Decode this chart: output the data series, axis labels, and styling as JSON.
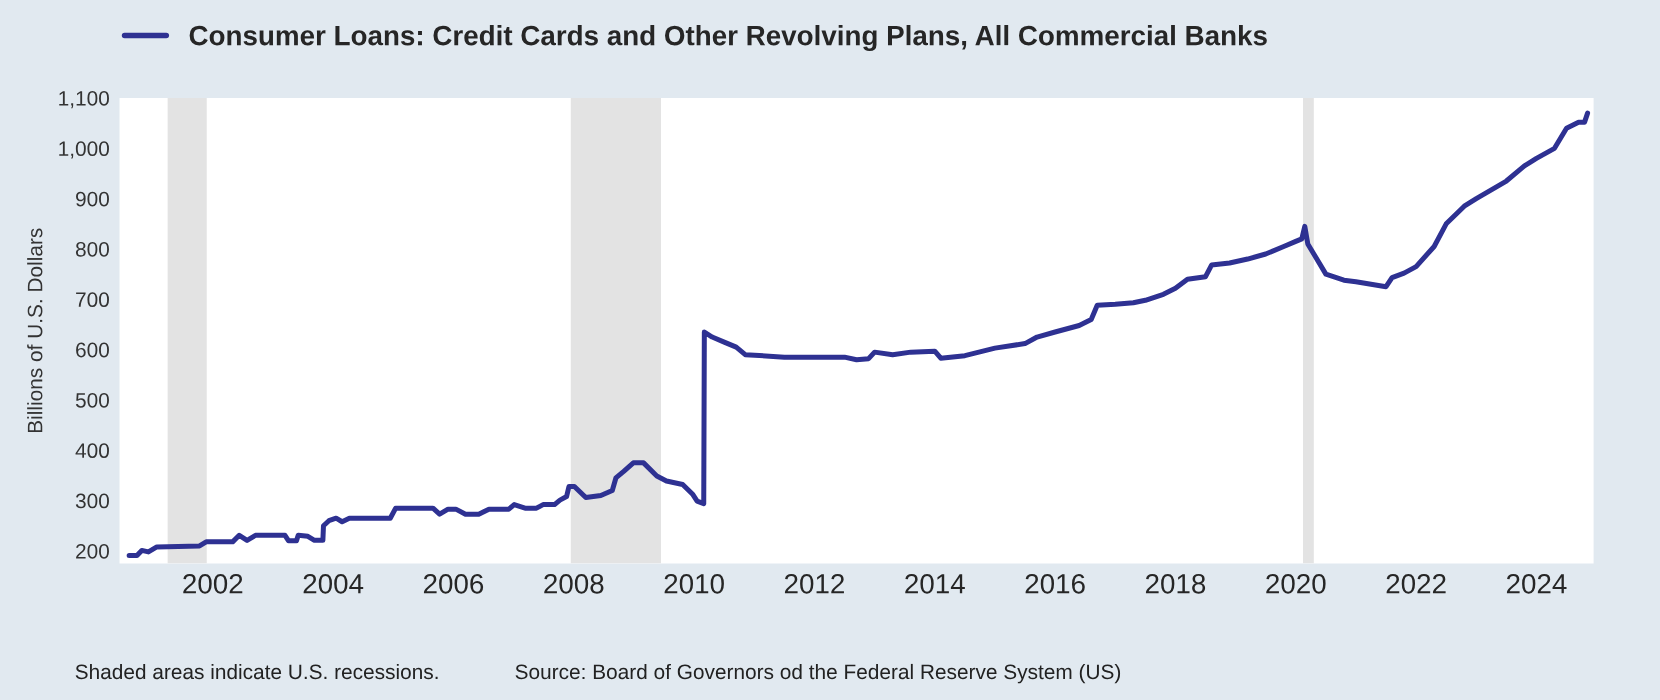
{
  "chart_data": {
    "type": "line",
    "ylabel": "Billions of U.S. Dollars",
    "legend": "top left",
    "grid": false,
    "marker": "none",
    "line_style": "solid",
    "xlim": [
      2000.45,
      2024.95
    ],
    "ylim": [
      175,
      1100
    ],
    "xticks": [
      2002,
      2004,
      2006,
      2008,
      2010,
      2012,
      2014,
      2016,
      2018,
      2020,
      2022,
      2024
    ],
    "yticks": [
      200,
      300,
      400,
      500,
      600,
      700,
      800,
      900,
      {
        "value": 1000,
        "label": "1,000"
      },
      {
        "value": 1100,
        "label": "1,100"
      }
    ],
    "bands": [
      {
        "axis": "x",
        "from": 2001.25,
        "to": 2001.9,
        "color": "#e3e3e3"
      },
      {
        "axis": "x",
        "from": 2007.95,
        "to": 2009.45,
        "color": "#e3e3e3"
      },
      {
        "axis": "x",
        "from": 2020.12,
        "to": 2020.3,
        "color": "#e3e3e3"
      }
    ],
    "annotations": [
      "Shaded areas indicate U.S. recessions.",
      "Source: Board of Governors od the Federal Reserve System (US)"
    ],
    "series": [
      {
        "name": "Consumer Loans: Credit Cards and Other Revolving Plans, All Commercial Banks",
        "color": "#2e3192",
        "x": [
          2000.61,
          2000.74,
          2000.82,
          2000.93,
          2001.07,
          2001.78,
          2001.89,
          2002.33,
          2002.44,
          2002.57,
          2002.71,
          2003.2,
          2003.26,
          2003.39,
          2003.42,
          2003.58,
          2003.69,
          2003.83,
          2003.84,
          2003.93,
          2004.05,
          2004.15,
          2004.27,
          2004.95,
          2005.04,
          2005.66,
          2005.77,
          2005.91,
          2006.04,
          2006.2,
          2006.42,
          2006.59,
          2006.92,
          2007.01,
          2007.19,
          2007.38,
          2007.49,
          2007.68,
          2007.77,
          2007.88,
          2007.92,
          2008.01,
          2008.2,
          2008.45,
          2008.64,
          2008.7,
          2008.83,
          2008.99,
          2009.16,
          2009.38,
          2009.54,
          2009.81,
          2009.98,
          2010.05,
          2010.16,
          2010.17,
          2010.3,
          2010.5,
          2010.7,
          2010.85,
          2011.5,
          2012.0,
          2012.5,
          2012.7,
          2012.9,
          2013.0,
          2013.3,
          2013.6,
          2014.0,
          2014.1,
          2014.5,
          2015.0,
          2015.5,
          2015.7,
          2016.0,
          2016.4,
          2016.6,
          2016.7,
          2017.0,
          2017.3,
          2017.5,
          2017.8,
          2018.0,
          2018.2,
          2018.5,
          2018.6,
          2018.9,
          2019.2,
          2019.5,
          2019.8,
          2020.0,
          2020.1,
          2020.15,
          2020.2,
          2020.3,
          2020.5,
          2020.8,
          2021.0,
          2021.5,
          2021.6,
          2021.8,
          2022.0,
          2022.3,
          2022.5,
          2022.8,
          2023.0,
          2023.5,
          2023.8,
          2024.0,
          2024.3,
          2024.5,
          2024.7,
          2024.8,
          2024.85
        ],
        "values": [
          191,
          191,
          201,
          198,
          208,
          210,
          218,
          218,
          231,
          221,
          231,
          231,
          220,
          220,
          231,
          229,
          221,
          221,
          250,
          260,
          265,
          258,
          265,
          265,
          285,
          285,
          273,
          283,
          283,
          273,
          273,
          283,
          283,
          292,
          285,
          285,
          292,
          292,
          301,
          308,
          328,
          328,
          306,
          310,
          320,
          345,
          358,
          375,
          375,
          349,
          339,
          332,
          312,
          299,
          294,
          635,
          625,
          615,
          605,
          590,
          585,
          585,
          585,
          580,
          582,
          595,
          590,
          595,
          597,
          583,
          588,
          603,
          612,
          625,
          635,
          648,
          660,
          688,
          690,
          693,
          698,
          710,
          722,
          740,
          745,
          768,
          772,
          780,
          790,
          805,
          815,
          820,
          845,
          810,
          790,
          750,
          738,
          735,
          725,
          743,
          752,
          765,
          805,
          850,
          885,
          900,
          935,
          965,
          980,
          1000,
          1040,
          1052,
          1052,
          1070
        ]
      }
    ]
  }
}
